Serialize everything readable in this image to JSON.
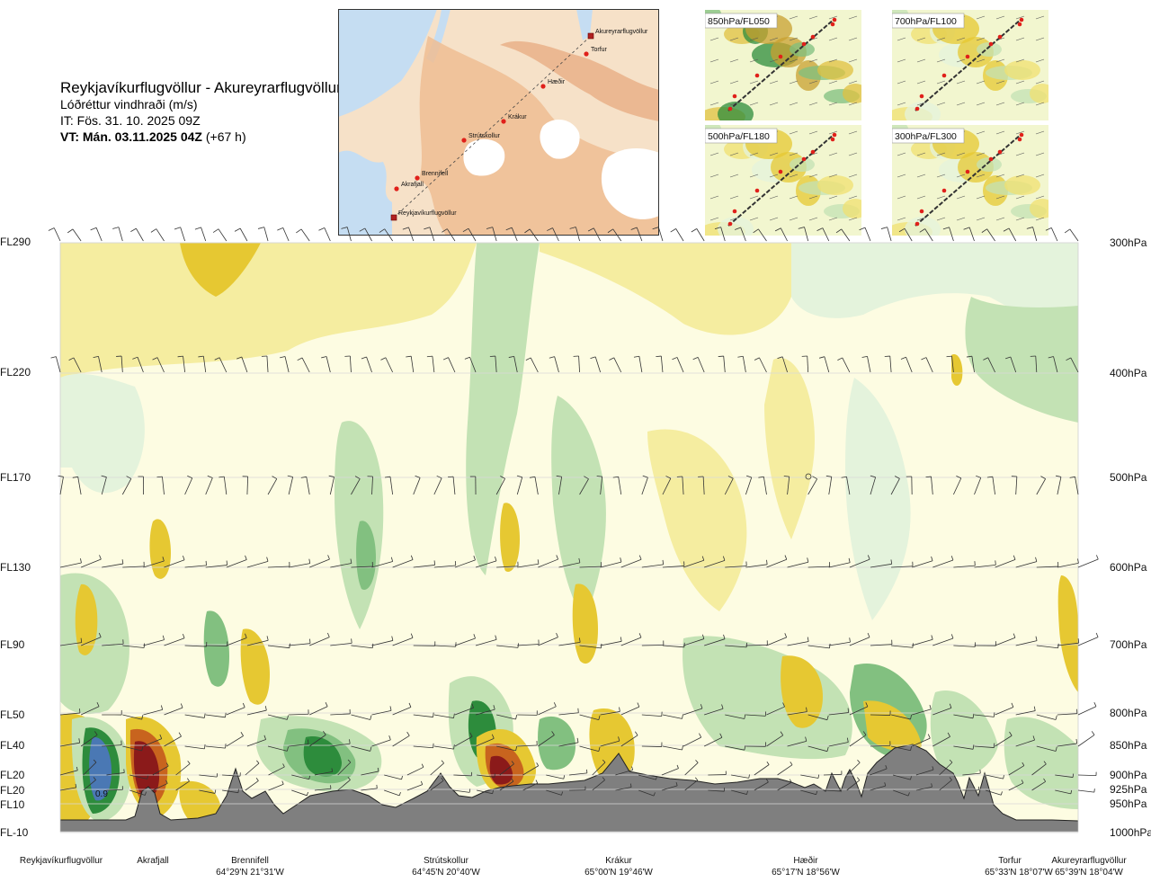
{
  "header": {
    "route": "Reykjavíkurflugvöllur - Akureyrarflugvöllur",
    "variable": "Lóðréttur vindhraði (m/s)",
    "it_line": "IT: Fös. 31. 10. 2025 09Z",
    "vt_label": "VT: Mán. 03.11.2025 04Z",
    "vt_offset": "(+67 h)"
  },
  "route_map": {
    "waypoints": [
      {
        "name": "Akureyrarflugvöllur",
        "marker": "square"
      },
      {
        "name": "Torfur",
        "marker": "dot"
      },
      {
        "name": "Hæðir",
        "marker": "dot"
      },
      {
        "name": "Krákur",
        "marker": "dot"
      },
      {
        "name": "Strútskollur",
        "marker": "dot"
      },
      {
        "name": "Brennifell",
        "marker": "dot"
      },
      {
        "name": "Akrafjall",
        "marker": "dot"
      },
      {
        "name": "Reykjavíkurflugvöllur",
        "marker": "square"
      }
    ]
  },
  "level_maps": [
    {
      "label": "850hPa/FL050"
    },
    {
      "label": "700hPa/FL100"
    },
    {
      "label": "500hPa/FL180"
    },
    {
      "label": "300hPa/FL300"
    }
  ],
  "chart_data": {
    "type": "heatmap",
    "title": "Lóðréttur vindhraði (m/s)",
    "xlabel": "",
    "ylabel": "",
    "flight_levels_left": [
      "FL290",
      "FL220",
      "FL170",
      "FL130",
      "FL90",
      "FL50",
      "FL40",
      "FL20",
      "FL20",
      "FL10",
      "FL-10"
    ],
    "pressure_levels_right": [
      "300hPa",
      "400hPa",
      "500hPa",
      "600hPa",
      "700hPa",
      "800hPa",
      "850hPa",
      "900hPa",
      "925hPa",
      "950hPa",
      "1000hPa"
    ],
    "pressure_hpa": [
      300,
      400,
      500,
      600,
      700,
      800,
      850,
      900,
      925,
      950,
      1000
    ],
    "stations": [
      {
        "name": "Reykjavíkurflugvöllur",
        "coord": ""
      },
      {
        "name": "Akrafjall",
        "coord": ""
      },
      {
        "name": "Brennifell",
        "coord": "64°29'N 21°31'W"
      },
      {
        "name": "Strútskollur",
        "coord": "64°45'N 20°40'W"
      },
      {
        "name": "Krákur",
        "coord": "65°00'N 19°46'W"
      },
      {
        "name": "Hæðir",
        "coord": "65°17'N 18°56'W"
      },
      {
        "name": "Torfur",
        "coord": "65°33'N 18°07'W"
      },
      {
        "name": "Akureyrarflugvöllur",
        "coord": "65°39'N 18°04'W"
      }
    ],
    "annotations": [
      "0.9"
    ],
    "grid": true,
    "colors": {
      "strong_down": "#8b1a1a",
      "mod_down": "#c8641e",
      "weak_down": "#e6c832",
      "slight_down": "#f5eda0",
      "neutral": "#fdfce2",
      "slight_up": "#e4f3dc",
      "weak_up": "#c3e2b4",
      "mod_up": "#82c080",
      "strong_up": "#2d8c3c",
      "very_strong_up": "#4a78b4",
      "terrain": "#7f7f7f"
    }
  }
}
